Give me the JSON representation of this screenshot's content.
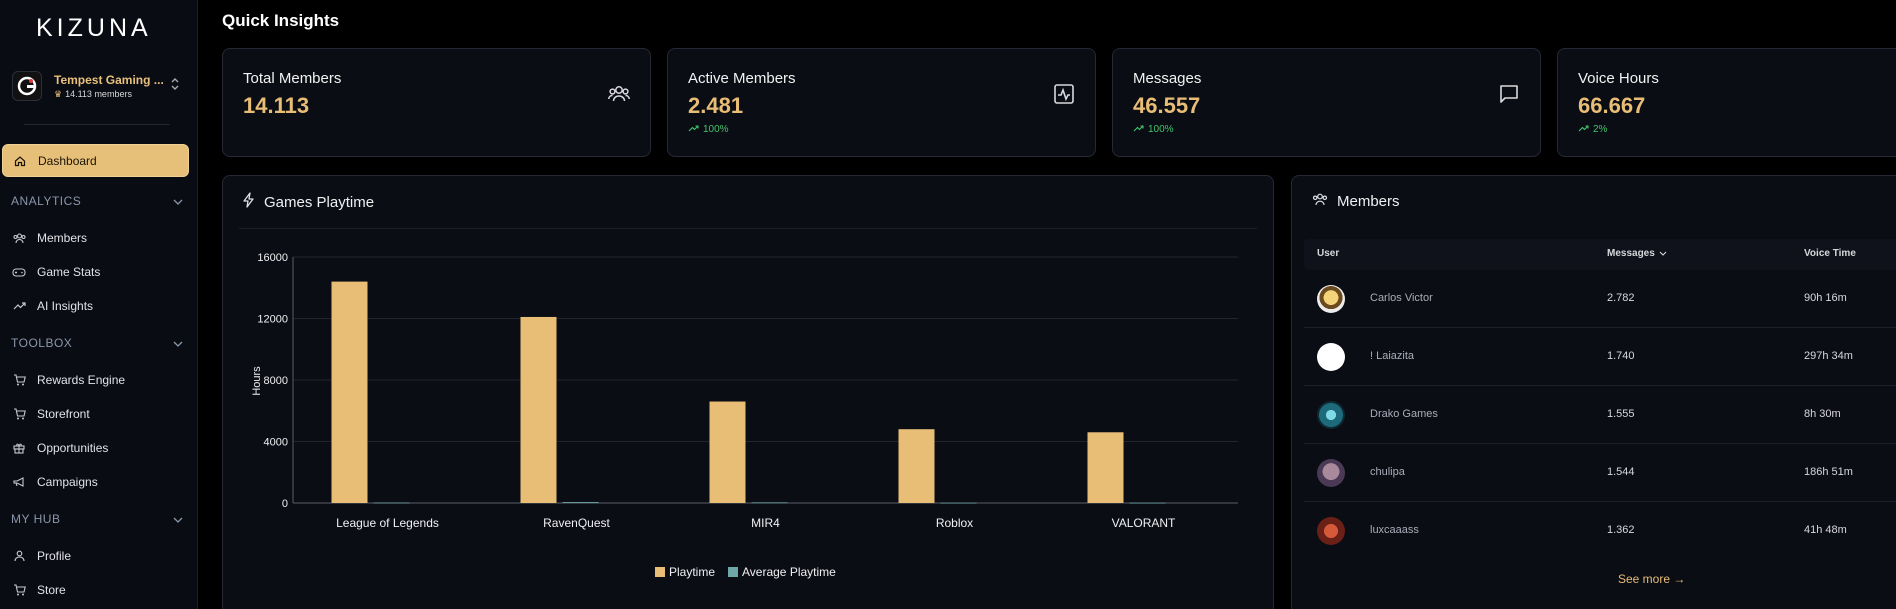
{
  "brand": {
    "logo": "KIZUNA"
  },
  "server": {
    "name": "Tempest Gaming ...",
    "members": "14.113 members"
  },
  "nav": {
    "dashboard": "Dashboard",
    "analytics": {
      "title": "ANALYTICS",
      "items": [
        "Members",
        "Game Stats",
        "AI Insights"
      ]
    },
    "toolbox": {
      "title": "TOOLBOX",
      "items": [
        "Rewards Engine",
        "Storefront",
        "Opportunities",
        "Campaigns"
      ]
    },
    "myhub": {
      "title": "MY HUB",
      "items": [
        "Profile",
        "Store"
      ]
    }
  },
  "page": {
    "title": "Quick Insights"
  },
  "stats": [
    {
      "label": "Total Members",
      "value": "14.113",
      "trend": "",
      "icon": "members-icon"
    },
    {
      "label": "Active Members",
      "value": "2.481",
      "trend": "100%",
      "icon": "activity-icon"
    },
    {
      "label": "Messages",
      "value": "46.557",
      "trend": "100%",
      "icon": "message-icon"
    },
    {
      "label": "Voice Hours",
      "value": "66.667",
      "trend": "2%",
      "icon": "voice-icon"
    }
  ],
  "colors": {
    "accent": "#e8bd76",
    "trend_up": "#42c46b",
    "playtime": "#e8bd76",
    "avg_playtime": "#6fa6a8"
  },
  "games_panel": {
    "title": "Games Playtime"
  },
  "chart_data": {
    "type": "bar",
    "title": "",
    "xlabel": "",
    "ylabel": "Hours",
    "categories": [
      "League of Legends",
      "RavenQuest",
      "MIR4",
      "Roblox",
      "VALORANT"
    ],
    "series": [
      {
        "name": "Playtime",
        "values": [
          14400,
          12100,
          6600,
          4800,
          4600
        ]
      },
      {
        "name": "Average Playtime",
        "values": [
          30,
          60,
          40,
          20,
          20
        ]
      }
    ],
    "ylim": [
      0,
      16000
    ],
    "yticks": [
      "16000",
      "12000",
      "8000",
      "4000",
      "0"
    ],
    "grid": true,
    "legend": "bottom-center"
  },
  "members_panel": {
    "title": "Members",
    "columns": {
      "user": "User",
      "messages": "Messages",
      "voice": "Voice Time"
    },
    "rows": [
      {
        "name": "Carlos Victor",
        "messages": "2.782",
        "voice": "90h 16m"
      },
      {
        "name": "! Laiazita",
        "messages": "1.740",
        "voice": "297h 34m"
      },
      {
        "name": "Drako Games",
        "messages": "1.555",
        "voice": "8h 30m"
      },
      {
        "name": "chulipa",
        "messages": "1.544",
        "voice": "186h 51m"
      },
      {
        "name": "luxcaaass",
        "messages": "1.362",
        "voice": "41h 48m"
      }
    ],
    "see_more": "See more →"
  }
}
